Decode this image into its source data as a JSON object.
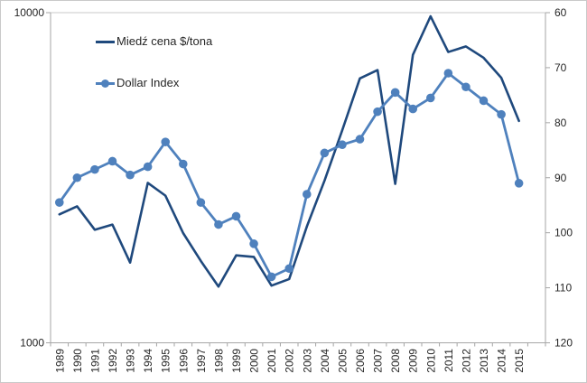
{
  "figure": {
    "background": "#FFFFFF",
    "border_color": "#C9C9C9"
  },
  "legend": {
    "position": "inside-top-left",
    "items": [
      {
        "label": "Miedź cena $/tona"
      },
      {
        "label": "Dollar Index"
      }
    ]
  },
  "chart_data": {
    "type": "line",
    "title": "",
    "categories": [
      "1989",
      "1990",
      "1991",
      "1992",
      "1993",
      "1994",
      "1995",
      "1996",
      "1997",
      "1998",
      "1999",
      "2000",
      "2001",
      "2002",
      "2003",
      "2004",
      "2005",
      "2006",
      "2007",
      "2008",
      "2009",
      "2010",
      "2011",
      "2012",
      "2013",
      "2014",
      "2015"
    ],
    "series": [
      {
        "name": "Miedź cena $/tona",
        "axis": "left",
        "color": "#1F497D",
        "line_width": 2.6,
        "marker": "none",
        "values": [
          2450,
          2590,
          2200,
          2280,
          1750,
          3050,
          2790,
          2150,
          1770,
          1480,
          1840,
          1820,
          1490,
          1560,
          2250,
          3100,
          4400,
          6320,
          6700,
          3030,
          7450,
          9750,
          7600,
          7900,
          7300,
          6350,
          4700
        ]
      },
      {
        "name": "Dollar Index",
        "axis": "right",
        "color": "#4F81BD",
        "line_width": 2.8,
        "marker": "circle",
        "marker_radius": 4.8,
        "values": [
          94.5,
          90,
          88.5,
          87,
          89.5,
          88,
          83.5,
          87.5,
          94.5,
          98.5,
          97,
          102,
          108,
          106.5,
          93,
          85.5,
          84,
          83,
          78,
          74.5,
          77.5,
          75.5,
          71,
          73.5,
          76,
          78.5,
          91
        ]
      }
    ],
    "left_axis": {
      "scale": "log",
      "min": 1000,
      "max": 10000,
      "tick_values": [
        10000,
        1000
      ],
      "tick_labels": [
        "10000",
        "1000"
      ]
    },
    "right_axis": {
      "min": 60,
      "max": 120,
      "step": 10,
      "inverted": true,
      "tick_labels": [
        "60",
        "70",
        "80",
        "90",
        "100",
        "110",
        "120"
      ]
    },
    "grid": false,
    "legend_position": "inside-top-left",
    "axis_color": "#A6A6A6",
    "plot_border_top_color": "#C9C9C9",
    "text_color": "#262626"
  }
}
